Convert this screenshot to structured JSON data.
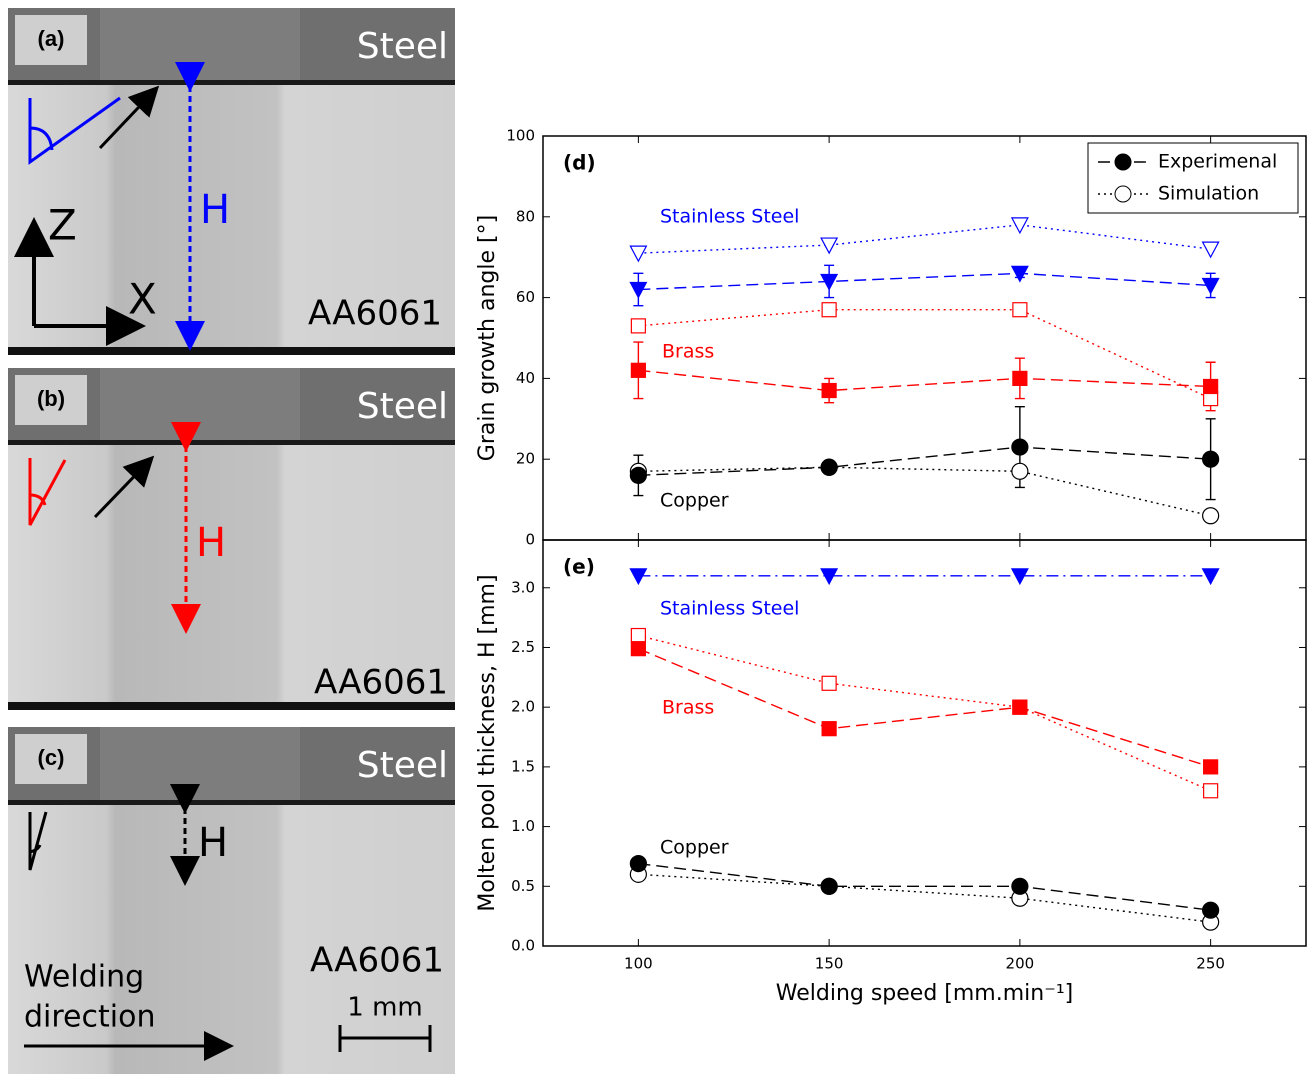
{
  "panels": [
    {
      "label": "(a)",
      "material": "Steel",
      "substrate": "AA6061",
      "thickness": "H"
    },
    {
      "label": "(b)",
      "material": "Steel",
      "substrate": "AA6061",
      "thickness": "H"
    },
    {
      "label": "(c)",
      "material": "Steel",
      "substrate": "AA6061",
      "thickness": "H"
    }
  ],
  "axes_labels": [
    "Z",
    "X"
  ],
  "welding_direction": [
    "Welding",
    "direction"
  ],
  "scale_bar": "1 mm",
  "chart_data": [
    {
      "type": "line",
      "label": "(d)",
      "ylabel": "Grain growth angle [°]",
      "x": [
        100,
        150,
        200,
        250
      ],
      "xlim": [
        75,
        275
      ],
      "ylim": [
        0,
        100
      ],
      "yticks": [
        0,
        20,
        40,
        60,
        80,
        100
      ],
      "legend": [
        {
          "name": "Experimenal",
          "style": "dashed",
          "filled": true
        },
        {
          "name": "Simulation",
          "style": "dotted",
          "filled": false
        }
      ],
      "series": [
        {
          "name": "Stainless Steel",
          "color": "#0000ff",
          "marker": "triangle",
          "linestyle": "dashed",
          "experimental": [
            62,
            64,
            66,
            63
          ],
          "errors": [
            4,
            4,
            1,
            3
          ],
          "simulation": [
            71,
            73,
            78,
            72
          ]
        },
        {
          "name": "Brass",
          "color": "#ff0000",
          "marker": "square",
          "linestyle": "dashed",
          "experimental": [
            42,
            37,
            40,
            38
          ],
          "errors": [
            7,
            3,
            5,
            6
          ],
          "simulation": [
            53,
            57,
            57,
            35
          ]
        },
        {
          "name": "Copper",
          "color": "#000000",
          "marker": "circle",
          "linestyle": "dashed",
          "experimental": [
            16,
            18,
            23,
            20
          ],
          "errors": [
            5,
            1,
            10,
            10
          ],
          "simulation": [
            17,
            18,
            17,
            6
          ]
        }
      ]
    },
    {
      "type": "line",
      "label": "(e)",
      "ylabel": "Molten pool thickness, H [mm]",
      "xlabel": "Welding speed [mm.min⁻¹]",
      "x": [
        100,
        150,
        200,
        250
      ],
      "xlim": [
        75,
        275
      ],
      "xticks": [
        100,
        150,
        200,
        250
      ],
      "ylim": [
        0,
        3.4
      ],
      "yticks": [
        {
          "value": 0,
          "label": "0.0"
        },
        {
          "value": 0.5,
          "label": "0.5"
        },
        {
          "value": 1,
          "label": "1.0"
        },
        {
          "value": 1.5,
          "label": "1.5"
        },
        {
          "value": 2,
          "label": "2.0"
        },
        {
          "value": 2.5,
          "label": "2.5"
        },
        {
          "value": 3,
          "label": "3.0"
        }
      ],
      "series": [
        {
          "name": "Stainless Steel",
          "color": "#0000ff",
          "marker": "triangle",
          "linestyle": "dashdot",
          "experimental": [
            3.1,
            3.1,
            3.1,
            3.1
          ]
        },
        {
          "name": "Brass",
          "color": "#ff0000",
          "marker": "square",
          "linestyle": "dashed",
          "experimental": [
            2.49,
            1.82,
            2.0,
            1.5
          ],
          "simulation": [
            2.6,
            2.2,
            2.0,
            1.3
          ]
        },
        {
          "name": "Copper",
          "color": "#000000",
          "marker": "circle",
          "linestyle": "dashed",
          "experimental": [
            0.69,
            0.5,
            0.5,
            0.3
          ],
          "simulation": [
            0.6,
            0.5,
            0.4,
            0.2
          ]
        }
      ]
    }
  ]
}
